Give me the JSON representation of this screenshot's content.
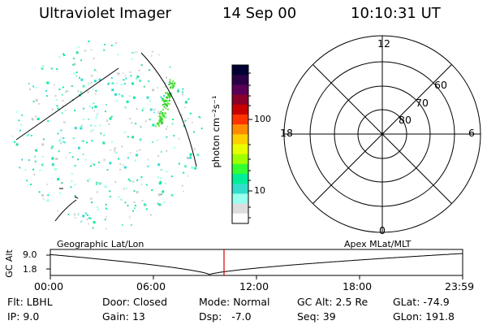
{
  "header": {
    "instrument": "Ultraviolet Imager",
    "date": "14 Sep 00",
    "time": "10:10:31 UT"
  },
  "colorbar": {
    "label": "photon cm⁻²s⁻¹",
    "ticks": [
      "100",
      "10"
    ],
    "colors": [
      "#000033",
      "#2a0047",
      "#5a005a",
      "#8a0028",
      "#c80000",
      "#ff3300",
      "#ff8c00",
      "#ffd000",
      "#e8ff00",
      "#a0ff00",
      "#33ff33",
      "#00ee99",
      "#33ddcc",
      "#99ffee",
      "#dddddd",
      "#ffffff"
    ]
  },
  "polar_grid": {
    "mlt_labels": {
      "top": "12",
      "left": "18",
      "right": "6",
      "bottom": "0"
    },
    "lat_labels": [
      "60",
      "70",
      "80"
    ]
  },
  "timeline": {
    "left_title": "Geographic Lat/Lon",
    "right_title": "Apex MLat/MLT",
    "axis_label": "GC Alt",
    "y_ticks": [
      "9.0",
      "1.8"
    ],
    "x_ticks": [
      "00:00",
      "06:00",
      "12:00",
      "18:00",
      "23:59"
    ],
    "marker_color": "#d40000"
  },
  "footer": {
    "row1": [
      {
        "label": "Flt:",
        "value": "LBHL"
      },
      {
        "label": "Door:",
        "value": "Closed"
      },
      {
        "label": "Mode:",
        "value": "Normal"
      },
      {
        "label": "GC Alt:",
        "value": "2.5 Re"
      },
      {
        "label": "GLat:",
        "value": "-74.9"
      }
    ],
    "row2": [
      {
        "label": "IP:",
        "value": "9.0"
      },
      {
        "label": "Gain:",
        "value": "13"
      },
      {
        "label": "Dsp:",
        "value": "-7.0"
      },
      {
        "label": "Seq:",
        "value": "39"
      },
      {
        "label": "GLon:",
        "value": "191.8"
      }
    ]
  }
}
